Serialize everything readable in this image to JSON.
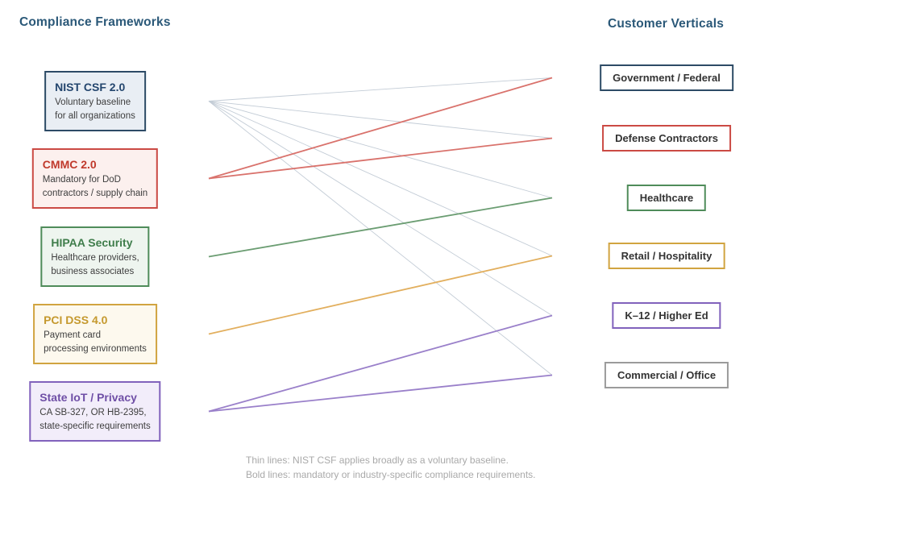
{
  "left": {
    "title": "Compliance Frameworks",
    "items": [
      {
        "id": "nist",
        "title": "NIST CSF 2.0",
        "desc1": "Voluntary baseline",
        "desc2": "for all organizations",
        "title_color": "#24466e",
        "border_color": "#2d4b66",
        "fill_color": "#e9eef4"
      },
      {
        "id": "cmmc",
        "title": "CMMC 2.0",
        "desc1": "Mandatory for DoD",
        "desc2": "contractors / supply chain",
        "title_color": "#c0392b",
        "border_color": "#cb4a44",
        "fill_color": "#fcf0ee"
      },
      {
        "id": "hipaa",
        "title": "HIPAA Security",
        "desc1": "Healthcare providers,",
        "desc2": "business associates",
        "title_color": "#3f7d4b",
        "border_color": "#4f8c5a",
        "fill_color": "#eef5ef"
      },
      {
        "id": "pci",
        "title": "PCI DSS 4.0",
        "desc1": "Payment card",
        "desc2": "processing environments",
        "title_color": "#c5992e",
        "border_color": "#d1a440",
        "fill_color": "#fdf9ee"
      },
      {
        "id": "stateiot",
        "title": "State IoT / Privacy",
        "desc1": "CA SB-327, OR HB-2395,",
        "desc2": "state-specific requirements",
        "title_color": "#6f4fa6",
        "border_color": "#8162bc",
        "fill_color": "#f2edfa"
      }
    ]
  },
  "right": {
    "title": "Customer Verticals",
    "items": [
      {
        "id": "gov",
        "label": "Government / Federal",
        "border_color": "#2d4b66"
      },
      {
        "id": "defense",
        "label": "Defense Contractors",
        "border_color": "#cb4a44"
      },
      {
        "id": "healthcare",
        "label": "Healthcare",
        "border_color": "#4f8c5a"
      },
      {
        "id": "retail",
        "label": "Retail / Hospitality",
        "border_color": "#d1a440"
      },
      {
        "id": "k12",
        "label": "K–12 / Higher Ed",
        "border_color": "#8162bc"
      },
      {
        "id": "commercial",
        "label": "Commercial / Office",
        "border_color": "#9b9b9b"
      }
    ]
  },
  "edges": [
    {
      "from": "nist",
      "to": "gov",
      "style": "thin",
      "color": "#c3ccd6"
    },
    {
      "from": "nist",
      "to": "defense",
      "style": "thin",
      "color": "#c3ccd6"
    },
    {
      "from": "nist",
      "to": "healthcare",
      "style": "thin",
      "color": "#c3ccd6"
    },
    {
      "from": "nist",
      "to": "retail",
      "style": "thin",
      "color": "#c3ccd6"
    },
    {
      "from": "nist",
      "to": "k12",
      "style": "thin",
      "color": "#c3ccd6"
    },
    {
      "from": "nist",
      "to": "commercial",
      "style": "thin",
      "color": "#c3ccd6"
    },
    {
      "from": "cmmc",
      "to": "gov",
      "style": "bold",
      "color": "#d9726c"
    },
    {
      "from": "cmmc",
      "to": "defense",
      "style": "bold",
      "color": "#d9726c"
    },
    {
      "from": "hipaa",
      "to": "healthcare",
      "style": "bold",
      "color": "#6b9d72"
    },
    {
      "from": "pci",
      "to": "retail",
      "style": "bold",
      "color": "#e2af5e"
    },
    {
      "from": "stateiot",
      "to": "k12",
      "style": "bold",
      "color": "#9a80ca"
    },
    {
      "from": "stateiot",
      "to": "commercial",
      "style": "bold",
      "color": "#9a80ca"
    }
  ],
  "header_color": "#2a5878",
  "caption": {
    "line1": "Thin lines: NIST CSF applies broadly as a voluntary baseline.",
    "line2": "Bold lines: mandatory or industry-specific compliance requirements."
  }
}
